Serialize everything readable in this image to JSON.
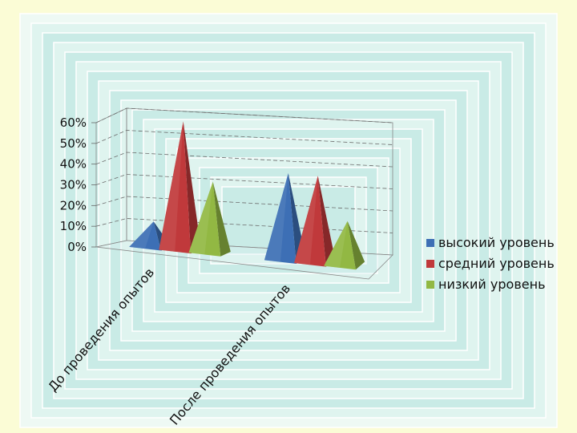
{
  "colors": {
    "background": "#fbfcd6",
    "frame_light": "#eef9f4",
    "frame_mid": "#c9ebe6",
    "frame_inner": "#dff4ef"
  },
  "chart_data": {
    "type": "bar",
    "style": "3d-pyramid",
    "title": "",
    "xlabel": "",
    "ylabel": "",
    "ylim": [
      0,
      0.6
    ],
    "y_tick_labels": [
      "0%",
      "10%",
      "20%",
      "30%",
      "40%",
      "50%",
      "60%"
    ],
    "categories": [
      "До проведения опытов",
      "После проведения опытов"
    ],
    "series": [
      {
        "name": "высокий уровень",
        "color": "#3d6fb5",
        "values": [
          0.12,
          0.4
        ]
      },
      {
        "name": "средний уровень",
        "color": "#c0393b",
        "values": [
          0.6,
          0.4
        ]
      },
      {
        "name": "низкий уровень",
        "color": "#92b843",
        "values": [
          0.33,
          0.2
        ]
      }
    ],
    "grid": true,
    "legend_position": "right"
  }
}
